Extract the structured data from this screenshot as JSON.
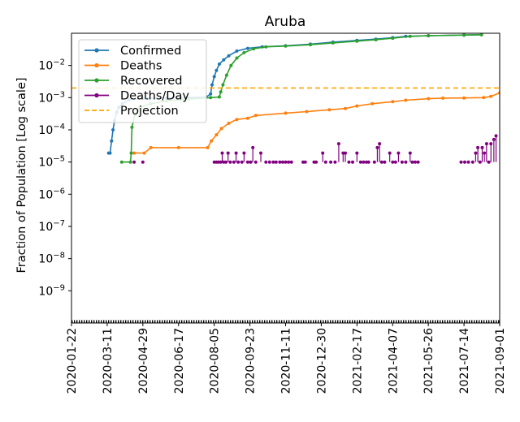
{
  "chart_data": {
    "type": "line",
    "title": "Aruba",
    "xlabel": "",
    "ylabel": "Fraction of Population [Log scale]",
    "yscale": "log",
    "ylim": [
      1e-10,
      0.1
    ],
    "xlim": [
      "2020-01-22",
      "2021-09-01"
    ],
    "grid": false,
    "legend_position": "top-left",
    "x_ticks": [
      "2020-01-22",
      "2020-03-11",
      "2020-04-29",
      "2020-06-17",
      "2020-08-05",
      "2020-09-23",
      "2020-11-11",
      "2020-12-30",
      "2021-02-17",
      "2021-04-07",
      "2021-05-26",
      "2021-07-14",
      "2021-09-01"
    ],
    "y_ticks": [
      {
        "value": 1e-09,
        "base": "10",
        "exp": "−9"
      },
      {
        "value": 1e-08,
        "base": "10",
        "exp": "−8"
      },
      {
        "value": 1e-07,
        "base": "10",
        "exp": "−7"
      },
      {
        "value": 1e-06,
        "base": "10",
        "exp": "−6"
      },
      {
        "value": 1e-05,
        "base": "10",
        "exp": "−5"
      },
      {
        "value": 0.0001,
        "base": "10",
        "exp": "−4"
      },
      {
        "value": 0.001,
        "base": "10",
        "exp": "−3"
      },
      {
        "value": 0.01,
        "base": "10",
        "exp": "−2"
      }
    ],
    "series": [
      {
        "name": "Confirmed",
        "color": "#1f77b4",
        "style": "line-dots",
        "points": [
          [
            "2020-03-13",
            1.9e-05
          ],
          [
            "2020-03-15",
            1.9e-05
          ],
          [
            "2020-03-17",
            4.5e-05
          ],
          [
            "2020-03-19",
            0.0001
          ],
          [
            "2020-03-21",
            0.00019
          ],
          [
            "2020-03-24",
            0.00035
          ],
          [
            "2020-03-27",
            0.0005
          ],
          [
            "2020-04-01",
            0.00065
          ],
          [
            "2020-04-10",
            0.00085
          ],
          [
            "2020-05-01",
            0.00095
          ],
          [
            "2020-06-01",
            0.00098
          ],
          [
            "2020-07-01",
            0.001
          ],
          [
            "2020-07-25",
            0.00105
          ],
          [
            "2020-07-31",
            0.0013
          ],
          [
            "2020-08-02",
            0.0025
          ],
          [
            "2020-08-05",
            0.0045
          ],
          [
            "2020-08-08",
            0.007
          ],
          [
            "2020-08-12",
            0.011
          ],
          [
            "2020-08-18",
            0.015
          ],
          [
            "2020-08-25",
            0.02
          ],
          [
            "2020-09-05",
            0.028
          ],
          [
            "2020-09-20",
            0.034
          ],
          [
            "2020-10-10",
            0.038
          ],
          [
            "2020-11-11",
            0.041
          ],
          [
            "2020-12-15",
            0.046
          ],
          [
            "2021-01-15",
            0.053
          ],
          [
            "2021-02-17",
            0.06
          ],
          [
            "2021-03-15",
            0.066
          ],
          [
            "2021-04-07",
            0.073
          ],
          [
            "2021-04-25",
            0.08
          ],
          [
            "2021-05-26",
            0.084
          ],
          [
            "2021-07-14",
            0.088
          ],
          [
            "2021-08-07",
            0.09
          ]
        ]
      },
      {
        "name": "Deaths",
        "color": "#ff7f0e",
        "style": "line-dots",
        "points": [
          [
            "2020-04-17",
            1.9e-05
          ],
          [
            "2020-05-01",
            1.9e-05
          ],
          [
            "2020-05-10",
            2.8e-05
          ],
          [
            "2020-06-17",
            2.8e-05
          ],
          [
            "2020-07-27",
            2.8e-05
          ],
          [
            "2020-08-01",
            4.5e-05
          ],
          [
            "2020-08-08",
            7e-05
          ],
          [
            "2020-08-15",
            0.00011
          ],
          [
            "2020-08-25",
            0.00016
          ],
          [
            "2020-09-05",
            0.00021
          ],
          [
            "2020-09-20",
            0.00023
          ],
          [
            "2020-10-01",
            0.00028
          ],
          [
            "2020-11-11",
            0.00033
          ],
          [
            "2020-12-10",
            0.00037
          ],
          [
            "2021-01-10",
            0.00042
          ],
          [
            "2021-02-01",
            0.00046
          ],
          [
            "2021-02-17",
            0.00055
          ],
          [
            "2021-03-10",
            0.00065
          ],
          [
            "2021-04-07",
            0.00075
          ],
          [
            "2021-04-25",
            0.00083
          ],
          [
            "2021-05-26",
            0.00093
          ],
          [
            "2021-06-15",
            0.00097
          ],
          [
            "2021-07-14",
            0.00098
          ],
          [
            "2021-08-10",
            0.001
          ],
          [
            "2021-08-20",
            0.0011
          ],
          [
            "2021-09-01",
            0.0014
          ]
        ]
      },
      {
        "name": "Recovered",
        "color": "#2ca02c",
        "style": "line-dots",
        "points": [
          [
            "2020-03-31",
            1e-05
          ],
          [
            "2020-04-12",
            1e-05
          ],
          [
            "2020-04-13",
            1.9e-05
          ],
          [
            "2020-04-14",
            0.00012
          ],
          [
            "2020-04-18",
            0.0003
          ],
          [
            "2020-04-25",
            0.0005
          ],
          [
            "2020-05-10",
            0.00065
          ],
          [
            "2020-06-01",
            0.0008
          ],
          [
            "2020-07-01",
            0.0009
          ],
          [
            "2020-07-31",
            0.001
          ],
          [
            "2020-08-12",
            0.00105
          ],
          [
            "2020-08-14",
            0.0015
          ],
          [
            "2020-08-17",
            0.0025
          ],
          [
            "2020-08-22",
            0.005
          ],
          [
            "2020-08-28",
            0.01
          ],
          [
            "2020-09-05",
            0.017
          ],
          [
            "2020-09-15",
            0.025
          ],
          [
            "2020-09-28",
            0.033
          ],
          [
            "2020-10-15",
            0.038
          ],
          [
            "2020-11-11",
            0.04
          ],
          [
            "2020-12-15",
            0.044
          ],
          [
            "2021-01-15",
            0.05
          ],
          [
            "2021-02-17",
            0.057
          ],
          [
            "2021-03-15",
            0.063
          ],
          [
            "2021-04-07",
            0.07
          ],
          [
            "2021-05-01",
            0.08
          ],
          [
            "2021-05-26",
            0.084
          ],
          [
            "2021-07-14",
            0.088
          ],
          [
            "2021-08-07",
            0.09
          ]
        ]
      },
      {
        "name": "Deaths/Day",
        "color": "#800080",
        "style": "dots",
        "points": [
          [
            "2020-04-17",
            1e-05
          ],
          [
            "2020-04-29",
            1e-05
          ],
          [
            "2020-08-05",
            1e-05
          ],
          [
            "2020-08-08",
            1e-05
          ],
          [
            "2020-08-11",
            1e-05
          ],
          [
            "2020-08-14",
            1e-05
          ],
          [
            "2020-08-16",
            1.9e-05
          ],
          [
            "2020-08-18",
            1e-05
          ],
          [
            "2020-08-21",
            1e-05
          ],
          [
            "2020-08-24",
            1.9e-05
          ],
          [
            "2020-08-27",
            1e-05
          ],
          [
            "2020-09-01",
            1e-05
          ],
          [
            "2020-09-04",
            1.9e-05
          ],
          [
            "2020-09-07",
            1e-05
          ],
          [
            "2020-09-12",
            1e-05
          ],
          [
            "2020-09-15",
            1.9e-05
          ],
          [
            "2020-09-20",
            1e-05
          ],
          [
            "2020-09-24",
            1e-05
          ],
          [
            "2020-09-27",
            2.8e-05
          ],
          [
            "2020-10-01",
            1e-05
          ],
          [
            "2020-10-08",
            1.9e-05
          ],
          [
            "2020-10-15",
            1e-05
          ],
          [
            "2020-10-20",
            1e-05
          ],
          [
            "2020-10-25",
            1e-05
          ],
          [
            "2020-10-29",
            1e-05
          ],
          [
            "2020-11-03",
            1e-05
          ],
          [
            "2020-11-07",
            1e-05
          ],
          [
            "2020-11-11",
            1e-05
          ],
          [
            "2020-11-15",
            1e-05
          ],
          [
            "2020-11-19",
            1e-05
          ],
          [
            "2020-12-05",
            1e-05
          ],
          [
            "2020-12-08",
            1e-05
          ],
          [
            "2020-12-20",
            1e-05
          ],
          [
            "2020-12-23",
            1e-05
          ],
          [
            "2021-01-01",
            1.9e-05
          ],
          [
            "2021-01-05",
            1e-05
          ],
          [
            "2021-01-12",
            1e-05
          ],
          [
            "2021-01-18",
            1e-05
          ],
          [
            "2021-01-23",
            3.7e-05
          ],
          [
            "2021-01-29",
            1.9e-05
          ],
          [
            "2021-02-01",
            1.9e-05
          ],
          [
            "2021-02-06",
            1e-05
          ],
          [
            "2021-02-11",
            1e-05
          ],
          [
            "2021-02-17",
            1.9e-05
          ],
          [
            "2021-02-22",
            1e-05
          ],
          [
            "2021-02-26",
            1e-05
          ],
          [
            "2021-03-02",
            1e-05
          ],
          [
            "2021-03-05",
            1e-05
          ],
          [
            "2021-03-13",
            1e-05
          ],
          [
            "2021-03-17",
            2.8e-05
          ],
          [
            "2021-03-20",
            3.7e-05
          ],
          [
            "2021-03-23",
            1e-05
          ],
          [
            "2021-03-27",
            1e-05
          ],
          [
            "2021-04-03",
            1.9e-05
          ],
          [
            "2021-04-07",
            1e-05
          ],
          [
            "2021-04-11",
            1e-05
          ],
          [
            "2021-04-15",
            1.9e-05
          ],
          [
            "2021-04-20",
            1e-05
          ],
          [
            "2021-04-25",
            1e-05
          ],
          [
            "2021-05-01",
            1.9e-05
          ],
          [
            "2021-05-04",
            1e-05
          ],
          [
            "2021-05-08",
            1e-05
          ],
          [
            "2021-05-12",
            1e-05
          ],
          [
            "2021-07-10",
            1e-05
          ],
          [
            "2021-07-15",
            1e-05
          ],
          [
            "2021-07-20",
            1e-05
          ],
          [
            "2021-07-26",
            1e-05
          ],
          [
            "2021-07-30",
            1.9e-05
          ],
          [
            "2021-08-02",
            2.8e-05
          ],
          [
            "2021-08-05",
            1e-05
          ],
          [
            "2021-08-08",
            2.8e-05
          ],
          [
            "2021-08-11",
            1.9e-05
          ],
          [
            "2021-08-14",
            3.7e-05
          ],
          [
            "2021-08-17",
            1e-05
          ],
          [
            "2021-08-20",
            3.7e-05
          ],
          [
            "2021-08-24",
            5e-05
          ],
          [
            "2021-08-27",
            6.5e-05
          ]
        ]
      },
      {
        "name": "Projection",
        "color": "#ffa500",
        "style": "dashed",
        "value": 0.002
      }
    ]
  }
}
